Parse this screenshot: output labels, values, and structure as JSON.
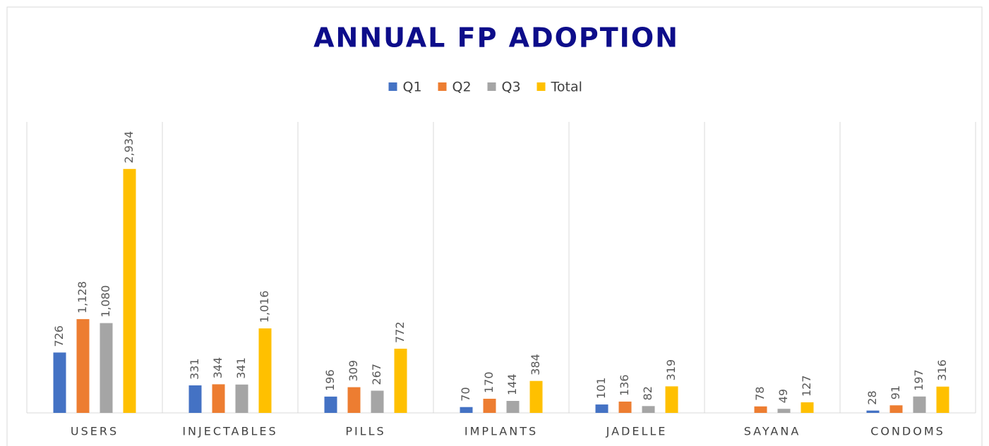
{
  "chart_data": {
    "type": "bar",
    "title": "ANNUAL FP ADOPTION",
    "categories": [
      "USERS",
      "INJECTABLES",
      "PILLS",
      "IMPLANTS",
      "JADELLE",
      "SAYANA",
      "CONDOMS"
    ],
    "series": [
      {
        "name": "Q1",
        "color": "#4472c4",
        "values": [
          726,
          331,
          196,
          70,
          101,
          null,
          28
        ],
        "value_labels": [
          "726",
          "331",
          "196",
          "70",
          "101",
          null,
          "28"
        ]
      },
      {
        "name": "Q2",
        "color": "#ed7d31",
        "values": [
          1128,
          344,
          309,
          170,
          136,
          78,
          91
        ],
        "value_labels": [
          "1,128",
          "344",
          "309",
          "170",
          "136",
          "78",
          "91"
        ]
      },
      {
        "name": "Q3",
        "color": "#a5a5a5",
        "values": [
          1080,
          341,
          267,
          144,
          82,
          49,
          197
        ],
        "value_labels": [
          "1,080",
          "341",
          "267",
          "144",
          "82",
          "49",
          "197"
        ]
      },
      {
        "name": "Total",
        "color": "#ffc000",
        "values": [
          2934,
          1016,
          772,
          384,
          319,
          127,
          316
        ],
        "value_labels": [
          "2,934",
          "1,016",
          "772",
          "384",
          "319",
          "127",
          "316"
        ]
      }
    ],
    "ylim": [
      0,
      3500
    ],
    "legend": "top"
  }
}
